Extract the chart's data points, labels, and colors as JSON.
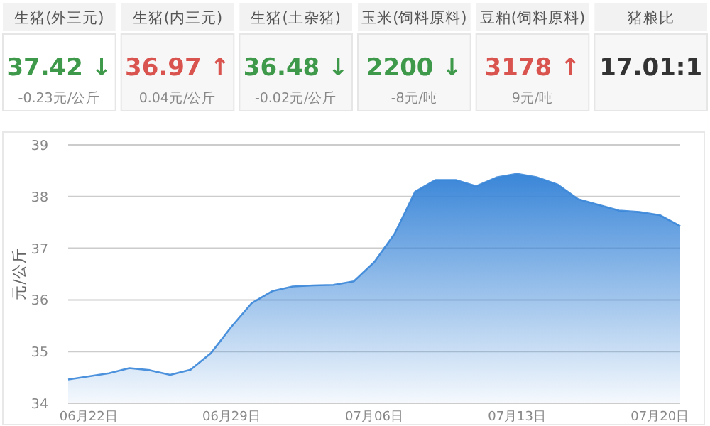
{
  "chart_data": [
    {
      "type": "other",
      "value_labels": [
        "37.42 ↓",
        "36.97 ↑",
        "36.48 ↓",
        "2200 ↓",
        "3178 ↑",
        "17.01:1"
      ],
      "colors": [
        "#3e9a4a",
        "#d9534f",
        "#3e9a4a",
        "#3e9a4a",
        "#d9534f",
        "#333333"
      ],
      "annotations": [
        "生猪(外三元)",
        "生猪(内三元)",
        "生猪(土杂猪)",
        "玉米(饲料原料)",
        "豆粕(饲料原料)",
        "猪粮比",
        "-0.23元/公斤",
        "0.04元/公斤",
        "-0.02元/公斤",
        "-8元/吨",
        "9元/吨"
      ]
    },
    {
      "type": "area",
      "ylabel": "元/公斤",
      "grid": "y",
      "ylim": [
        34,
        39
      ],
      "yticks": [
        34,
        35,
        36,
        37,
        38,
        39
      ],
      "xlim": [
        "--06-21",
        "--07-21"
      ],
      "xticks": [
        {
          "value": "--06-22",
          "label": "06月22日"
        },
        {
          "value": "--06-29",
          "label": "06月29日"
        },
        {
          "value": "--07-06",
          "label": "07月06日"
        },
        {
          "value": "--07-13",
          "label": "07月13日"
        },
        {
          "value": "--07-20",
          "label": "07月20日"
        }
      ],
      "x": [
        "--06-21",
        "--06-23",
        "--06-24",
        "--06-25",
        "--06-26",
        "--06-27",
        "--06-28",
        "--06-29",
        "--06-30",
        "--07-01",
        "--07-02",
        "--07-03",
        "--07-04",
        "--07-05",
        "--07-06",
        "--07-07",
        "--07-08",
        "--07-09",
        "--07-10",
        "--07-11",
        "--07-12",
        "--07-13",
        "--07-14",
        "--07-15",
        "--07-16",
        "--07-17",
        "--07-18",
        "--07-19",
        "--07-20",
        "--07-21"
      ],
      "series": [
        {
          "color": "#3a86d8",
          "values": [
            34.46,
            34.58,
            34.68,
            34.64,
            34.55,
            34.65,
            34.97,
            35.48,
            35.94,
            36.17,
            36.26,
            36.28,
            36.29,
            36.36,
            36.73,
            37.28,
            38.09,
            38.32,
            38.32,
            38.2,
            38.37,
            38.44,
            38.37,
            38.23,
            37.95,
            37.84,
            37.73,
            37.7,
            37.64,
            37.43
          ]
        }
      ]
    }
  ]
}
